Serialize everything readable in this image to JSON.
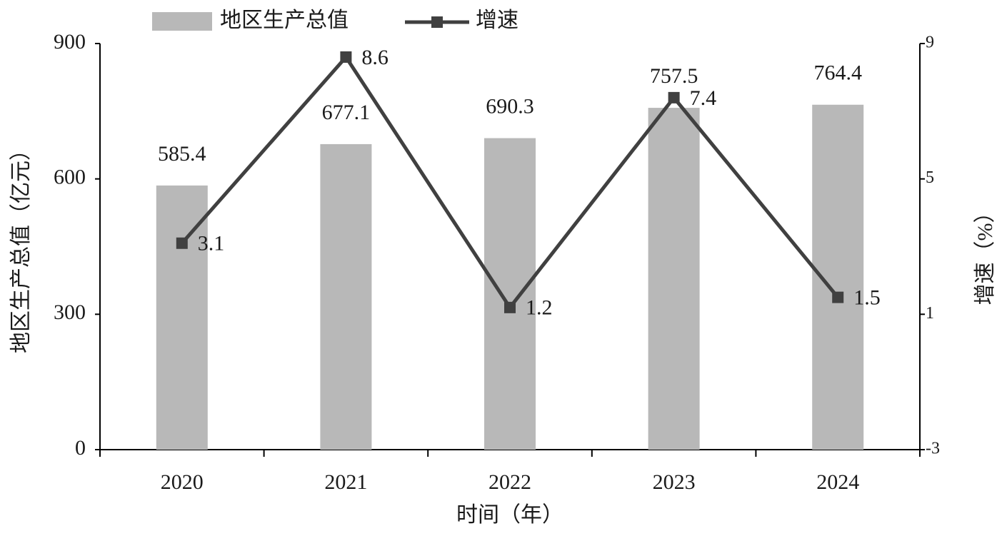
{
  "chart_data": {
    "type": "bar-line",
    "categories": [
      "2020",
      "2021",
      "2022",
      "2023",
      "2024"
    ],
    "series": [
      {
        "name": "地区生产总值",
        "color": "#b8b8b8",
        "type": "bar",
        "values": [
          585.4,
          677.1,
          690.3,
          757.5,
          764.4
        ]
      },
      {
        "name": "增速",
        "color": "#404040",
        "type": "line",
        "axis": "y2",
        "values": [
          3.1,
          8.6,
          1.2,
          7.4,
          1.5
        ]
      }
    ],
    "x_label": "时间（年）",
    "y_label": "地区生产总值（亿元）",
    "y2_label": "增速（%）",
    "ylim": [
      0,
      900
    ],
    "yticks": [
      0,
      300,
      600,
      900
    ],
    "y2lim": [
      -3,
      9
    ],
    "y2ticks": [
      -3,
      1,
      5,
      9
    ],
    "grid": false,
    "legend": "top"
  }
}
